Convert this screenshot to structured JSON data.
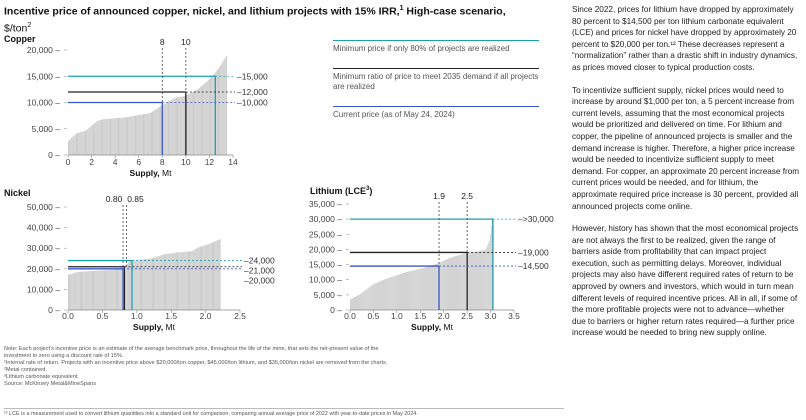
{
  "title": {
    "main": "Incentive price of announced copper, nickel, and lithium projects with 15% IRR,",
    "sup": "1",
    "tail": " High-case scenario,",
    "unit": "$/ton",
    "unit_sup": "2"
  },
  "legend": [
    {
      "label": "Minimum price if only 80% of projects are realized",
      "color": "#1aa0b0"
    },
    {
      "label": "Minimum ratio of price to meet 2035 demand if all projects are realized",
      "color": "#222222"
    },
    {
      "label": "Current price (as of May 24, 2024)",
      "color": "#3a56c8"
    }
  ],
  "notes": [
    "Note: Each project's incentive price is an estimate of the average benchmark price, throughout the life of the mine, that sets the net-present value of the",
    "investment to zero using a discount rate of 15%.",
    "¹Internal rate of return. Projects with an incentive price above $20,000/ton copper, $45,000/ton lithium, and $35,000/ton nickel are removed from the charts.",
    "²Metal contained.",
    "³Lithium carbonate equivalent.",
    "Source: McKinsey Metal&MineSpans"
  ],
  "footnote": "¹² LCE is a measurement used to convert lithium quantities into a standard unit for comparison; comparing annual average price of 2022 with year-to-date prices in May 2024.",
  "body": [
    "Since 2022, prices for lithium have dropped by approximately 80 percent to $14,500 per ton lithium carbonate equivalent (LCE) and prices for nickel have dropped by approximately 20 percent to $20,000 per ton.¹² These decreases represent a “normalization” rather than a drastic shift in industry dynamics, as prices moved closer to typical production costs.",
    "To incentivize sufficient supply, nickel prices would need to increase by around $1,000 per ton, a 5 percent increase from current levels, assuming that the most economical projects would be prioritized and delivered on time. For lithium and copper, the pipeline of announced projects is smaller and the demand increase is higher. Therefore, a higher price increase would be needed to incentivize sufficient supply to meet demand. For copper, an approximate 20 percent increase from current prices would be needed, and for lithium, the approximate required price increase is 30 percent, provided all announced projects come online.",
    "However, history has shown that the most economical projects are not always the first to be realized, given the range of barriers aside from profitability that can impact project execution, such as permitting delays. Moreover, individual projects may also have different required rates of return to be approved by owners and investors, which would in turn mean different levels of required incentive prices. All in all, if some of the more profitable projects were not to advance—whether due to barriers or higher return rates required—a further price increase would be needed to bring new supply online."
  ],
  "chart_data": [
    {
      "type": "area",
      "title": "Copper",
      "xlabel": "Supply,",
      "xunit": "Mt",
      "xlim": [
        0,
        14
      ],
      "ylim": [
        0,
        20000
      ],
      "xticks": [
        "0",
        "2",
        "4",
        "6",
        "8",
        "10",
        "12",
        "14"
      ],
      "yticks": [
        "0",
        "5,000",
        "10,000",
        "15,000",
        "20,000"
      ],
      "curve": [
        [
          0,
          2500
        ],
        [
          0.4,
          3500
        ],
        [
          0.8,
          4200
        ],
        [
          1.5,
          4600
        ],
        [
          2.5,
          6500
        ],
        [
          3,
          6800
        ],
        [
          5,
          7200
        ],
        [
          7,
          8000
        ],
        [
          8,
          9500
        ],
        [
          9,
          10800
        ],
        [
          10,
          11300
        ],
        [
          11,
          12500
        ],
        [
          11.8,
          14000
        ],
        [
          12.3,
          15200
        ],
        [
          12.8,
          16500
        ],
        [
          13.2,
          18000
        ],
        [
          13.5,
          19000
        ]
      ],
      "price_lines": [
        {
          "name": "80% realized",
          "value": 15000,
          "x": 12.5,
          "label": "15,000",
          "color": "#1aa0b0"
        },
        {
          "name": "2035 demand",
          "value": 12000,
          "x": 10,
          "label": "12,000",
          "color": "#222222"
        },
        {
          "name": "current",
          "value": 10000,
          "x": 8,
          "label": "10,000",
          "color": "#3a56c8"
        }
      ],
      "supply_markers": [
        {
          "value": 8,
          "label": "8"
        },
        {
          "value": 10,
          "label": "10"
        }
      ]
    },
    {
      "type": "area",
      "title": "Nickel",
      "xlabel": "Supply,",
      "xunit": "Mt",
      "xlim": [
        0,
        2.5
      ],
      "ylim": [
        0,
        50000
      ],
      "xticks": [
        "0.0",
        "0.5",
        "1.0",
        "1.5",
        "2.0",
        "2.5"
      ],
      "yticks": [
        "0",
        "10,000",
        "20,000",
        "30,000",
        "40,000",
        "50,000"
      ],
      "curve": [
        [
          0,
          17000
        ],
        [
          0.15,
          18500
        ],
        [
          0.4,
          19000
        ],
        [
          0.7,
          19600
        ],
        [
          0.8,
          21000
        ],
        [
          0.9,
          23500
        ],
        [
          1.0,
          24200
        ],
        [
          1.2,
          25000
        ],
        [
          1.4,
          27000
        ],
        [
          1.6,
          28000
        ],
        [
          1.8,
          28500
        ],
        [
          1.9,
          30500
        ],
        [
          2.05,
          32000
        ],
        [
          2.15,
          33500
        ],
        [
          2.22,
          34500
        ]
      ],
      "price_lines": [
        {
          "name": "80% realized",
          "value": 24000,
          "x": 0.93,
          "label": "24,000",
          "color": "#1aa0b0"
        },
        {
          "name": "2035 demand",
          "value": 21000,
          "x": 0.82,
          "label": "21,000",
          "color": "#222222"
        },
        {
          "name": "current",
          "value": 20000,
          "x": 0.8,
          "label": "20,000",
          "color": "#3a56c8"
        }
      ],
      "supply_markers": [
        {
          "value": 0.8,
          "label": "0.80"
        },
        {
          "value": 0.85,
          "label": "0.85"
        }
      ]
    },
    {
      "type": "area",
      "title": "Lithium (LCE",
      "title_sup": "3",
      "title_end": ")",
      "xlabel": "Supply,",
      "xunit": "Mt",
      "xlim": [
        0,
        3.5
      ],
      "ylim": [
        0,
        35000
      ],
      "xticks": [
        "0.0",
        "0.5",
        "1.0",
        "1.5",
        "2.0",
        "2.5",
        "3.0",
        "3.5"
      ],
      "yticks": [
        "0",
        "5,000",
        "10,000",
        "15,000",
        "20,000",
        "25,000",
        "30,000",
        "35,000"
      ],
      "curve": [
        [
          0,
          3500
        ],
        [
          0.2,
          5000
        ],
        [
          0.5,
          8500
        ],
        [
          0.8,
          10500
        ],
        [
          1.2,
          12500
        ],
        [
          1.6,
          14000
        ],
        [
          1.9,
          15500
        ],
        [
          2.1,
          17000
        ],
        [
          2.3,
          18000
        ],
        [
          2.5,
          18800
        ],
        [
          2.7,
          19200
        ],
        [
          2.9,
          20000
        ],
        [
          2.98,
          23000
        ],
        [
          3.02,
          28000
        ],
        [
          3.05,
          32000
        ]
      ],
      "price_lines": [
        {
          "name": "80% realized",
          "value": 30000,
          "x": 3.05,
          "label": ">30,000",
          "color": "#1aa0b0"
        },
        {
          "name": "2035 demand",
          "value": 19000,
          "x": 2.5,
          "label": "19,000",
          "color": "#222222"
        },
        {
          "name": "current",
          "value": 14500,
          "x": 1.9,
          "label": "14,500",
          "color": "#3a56c8"
        }
      ],
      "supply_markers": [
        {
          "value": 1.9,
          "label": "1.9"
        },
        {
          "value": 2.5,
          "label": "2.5"
        }
      ]
    }
  ]
}
